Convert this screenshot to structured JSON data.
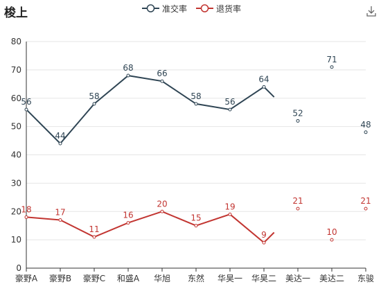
{
  "title": "梭上",
  "toolbox": {
    "download_icon": "download-icon"
  },
  "colors": {
    "series1": "#2f4554",
    "series2": "#c23531",
    "axis": "#333333",
    "grid": "#e5e5e5"
  },
  "chart_data": {
    "type": "line",
    "categories": [
      "豪野A",
      "豪野B",
      "豪野C",
      "和盛A",
      "华旭",
      "东然",
      "华昊一",
      "华昊二",
      "美达一",
      "美达二",
      "东骏"
    ],
    "ylim": [
      0,
      80
    ],
    "yticks": [
      0,
      10,
      20,
      30,
      40,
      50,
      60,
      70,
      80
    ],
    "grid": true,
    "legend": "top-center",
    "series": [
      {
        "name": "准交率",
        "values": [
          56,
          44,
          58,
          68,
          66,
          58,
          56,
          64,
          52,
          71,
          48
        ]
      },
      {
        "name": "退货率",
        "values": [
          18,
          17,
          11,
          16,
          20,
          15,
          19,
          9,
          21,
          10,
          21
        ]
      }
    ]
  }
}
